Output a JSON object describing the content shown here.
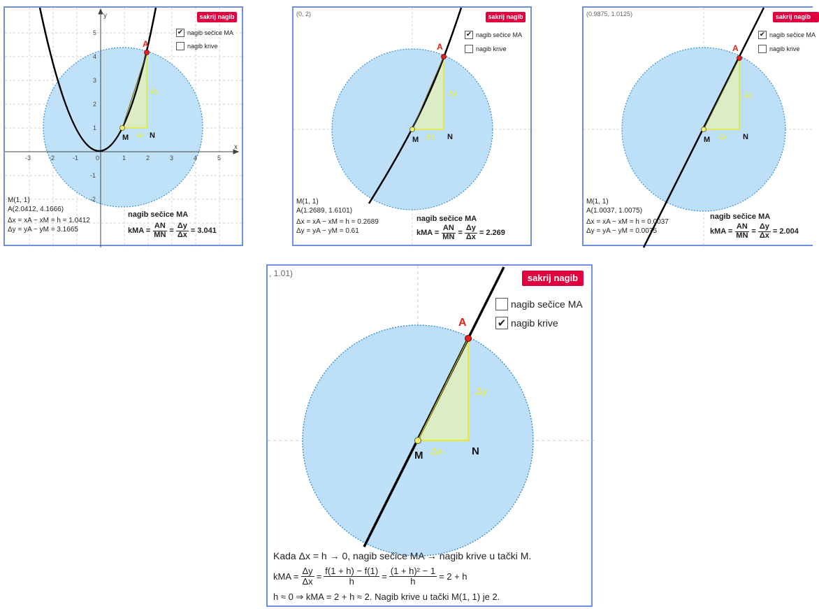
{
  "panels": [
    {
      "hide_button": "sakrij nagib",
      "checkbox_secant": {
        "label": "nagib sečice MA",
        "checked": true
      },
      "checkbox_curve": {
        "label": "nagib krive",
        "checked": false
      },
      "corner_coord": "",
      "axis_x_label": "x",
      "axis_y_label": "y",
      "x_ticks": [
        "-3",
        "-2",
        "-1",
        "0",
        "1",
        "2",
        "3",
        "4",
        "5"
      ],
      "y_ticks": [
        "5",
        "4",
        "3",
        "2",
        "1",
        "-1",
        "-2"
      ],
      "point_A": "A",
      "point_M": "M",
      "point_N": "N",
      "delta_x": "Δx",
      "delta_y": "Δy",
      "M_coords": "M(1, 1)",
      "A_coords": "A(2.0412, 4.1666)",
      "dx_line": "Δx = xA − xM = h = 1.0412",
      "dy_line": "Δy = yA − yM = 3.1665",
      "slope_title": "nagib sečice MA",
      "k_label": "kMA =",
      "AN": "AN",
      "MN": "MN",
      "dy": "Δy",
      "dx": "Δx",
      "k_value": "= 3.041"
    },
    {
      "hide_button": "sakrij nagib",
      "checkbox_secant": {
        "label": "nagib sečice MA",
        "checked": true
      },
      "checkbox_curve": {
        "label": "nagib krive",
        "checked": false
      },
      "corner_coord": "(0, 2)",
      "point_A": "A",
      "point_M": "M",
      "point_N": "N",
      "delta_x": "Δx",
      "delta_y": "Δy",
      "M_coords": "M(1, 1)",
      "A_coords": "A(1.2689, 1.6101)",
      "dx_line": "Δx = xA − xM = h = 0.2689",
      "dy_line": "Δy = yA − yM = 0.61",
      "slope_title": "nagib sečice MA",
      "k_label": "kMA =",
      "AN": "AN",
      "MN": "MN",
      "dy": "Δy",
      "dx": "Δx",
      "k_value": "= 2.269"
    },
    {
      "hide_button": "sakrij nagib",
      "checkbox_secant": {
        "label": "nagib sečice MA",
        "checked": true
      },
      "checkbox_curve": {
        "label": "nagib krive",
        "checked": false
      },
      "corner_coord": "(0.9875, 1.0125)",
      "point_A": "A",
      "point_M": "M",
      "point_N": "N",
      "delta_x": "Δx",
      "delta_y": "Δy",
      "M_coords": "M(1, 1)",
      "A_coords": "A(1.0037, 1.0075)",
      "dx_line": "Δx = xA − xM = h = 0.0037",
      "dy_line": "Δy = yA − yM = 0.0075",
      "slope_title": "nagib sečice MA",
      "k_label": "kMA =",
      "AN": "AN",
      "MN": "MN",
      "dy": "Δy",
      "dx": "Δx",
      "k_value": "= 2.004"
    },
    {
      "hide_button": "sakrij nagib",
      "checkbox_secant": {
        "label": "nagib sečice MA",
        "checked": false
      },
      "checkbox_curve": {
        "label": "nagib krive",
        "checked": true
      },
      "corner_coord": ", 1.01)",
      "point_A": "A",
      "point_M": "M",
      "point_N": "N",
      "delta_x": "Δx",
      "delta_y": "Δy",
      "line1": "Kada  Δx = h → 0,  nagib sečice MA  → nagib krive u tački M.",
      "line2_k": "kMA =",
      "line2_f1_num": "Δy",
      "line2_f1_den": "Δx",
      "line2_f2_num": "f(1 + h) − f(1)",
      "line2_f2_den": "h",
      "line2_f3_num": "(1 + h)² − 1",
      "line2_f3_den": "h",
      "line2_end": "= 2 + h",
      "line3": "h ≈ 0 ⇒  kMA = 2 + h ≈ 2.    Nagib krive u tački M(1, 1) je 2."
    }
  ],
  "colors": {
    "border": "#6f8fe3",
    "button_bg": "#e0003f",
    "circle_fill": "#bde0f8",
    "circle_stroke": "#3a8fd8",
    "triangle_fill": "#dcecc4",
    "triangle_stroke": "#e8ea2a",
    "point_A": "#e0231b",
    "point_M": "#f2f060",
    "curve": "#000000"
  },
  "icons": {
    "checkmark": "checkmark-icon"
  }
}
